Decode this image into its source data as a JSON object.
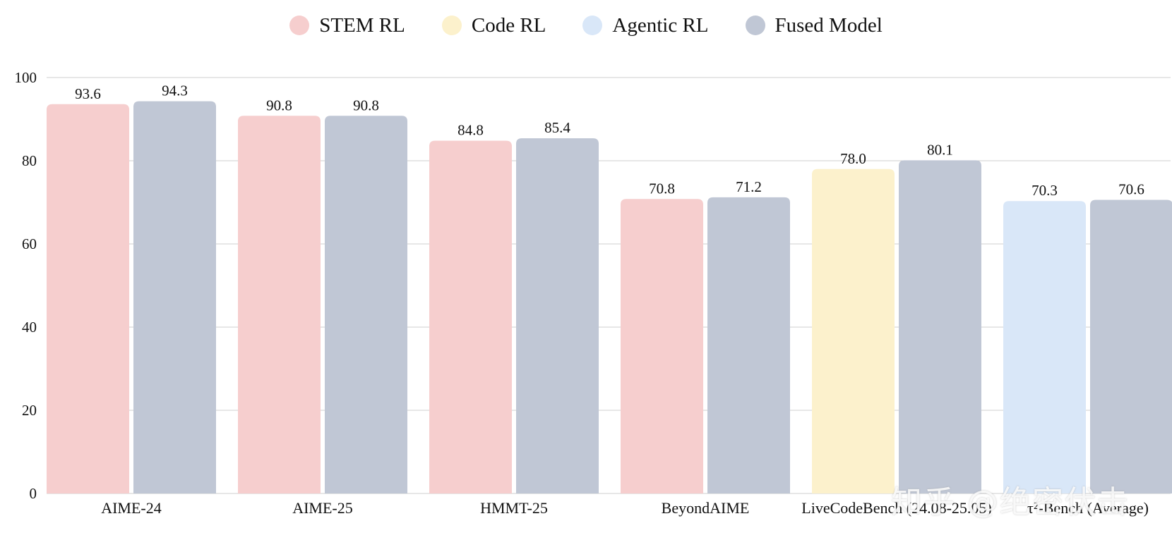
{
  "chart_data": {
    "type": "bar",
    "title": "",
    "xlabel": "",
    "ylabel": "",
    "ylim": [
      0,
      100
    ],
    "yticks": [
      0,
      20,
      40,
      60,
      80,
      100
    ],
    "grid": true,
    "legend_position": "top-center",
    "legend": [
      {
        "name": "STEM RL",
        "color": "#f6cece"
      },
      {
        "name": "Code RL",
        "color": "#fcf1cc"
      },
      {
        "name": "Agentic RL",
        "color": "#d9e7f8"
      },
      {
        "name": "Fused Model",
        "color": "#c0c7d5"
      }
    ],
    "groups": [
      {
        "category": "AIME-24",
        "bars": [
          {
            "series": "STEM RL",
            "value": 93.6,
            "label": "93.6"
          },
          {
            "series": "Fused Model",
            "value": 94.3,
            "label": "94.3"
          }
        ]
      },
      {
        "category": "AIME-25",
        "bars": [
          {
            "series": "STEM RL",
            "value": 90.8,
            "label": "90.8"
          },
          {
            "series": "Fused Model",
            "value": 90.8,
            "label": "90.8"
          }
        ]
      },
      {
        "category": "HMMT-25",
        "bars": [
          {
            "series": "STEM RL",
            "value": 84.8,
            "label": "84.8"
          },
          {
            "series": "Fused Model",
            "value": 85.4,
            "label": "85.4"
          }
        ]
      },
      {
        "category": "BeyondAIME",
        "bars": [
          {
            "series": "STEM RL",
            "value": 70.8,
            "label": "70.8"
          },
          {
            "series": "Fused Model",
            "value": 71.2,
            "label": "71.2"
          }
        ]
      },
      {
        "category": "LiveCodeBench (24.08-25.05)",
        "bars": [
          {
            "series": "Code RL",
            "value": 78.0,
            "label": "78.0"
          },
          {
            "series": "Fused Model",
            "value": 80.1,
            "label": "80.1"
          }
        ]
      },
      {
        "category": "τ²-Bench (Average)",
        "bars": [
          {
            "series": "Agentic RL",
            "value": 70.3,
            "label": "70.3"
          },
          {
            "series": "Fused Model",
            "value": 70.6,
            "label": "70.6"
          }
        ]
      }
    ]
  },
  "watermark": "知乎 @绝密伏击"
}
